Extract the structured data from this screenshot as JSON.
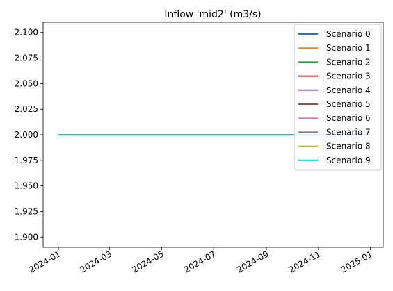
{
  "chart_data": {
    "type": "line",
    "title": "Inflow 'mid2' (m3/s)",
    "xlabel": "",
    "ylabel": "",
    "x_axis": {
      "type": "date",
      "range": [
        "2023-12-14",
        "2025-01-16"
      ],
      "tick_labels": [
        "2024-01",
        "2024-03",
        "2024-05",
        "2024-07",
        "2024-09",
        "2024-11",
        "2025-01"
      ],
      "tick_values": [
        "2024-01-01",
        "2024-03-01",
        "2024-05-01",
        "2024-07-01",
        "2024-09-01",
        "2024-11-01",
        "2025-01-01"
      ]
    },
    "y_axis": {
      "range": [
        1.89,
        2.11
      ],
      "tick_labels": [
        "1.900",
        "1.925",
        "1.950",
        "1.975",
        "2.000",
        "2.025",
        "2.050",
        "2.075",
        "2.100"
      ],
      "tick_values": [
        1.9,
        1.925,
        1.95,
        1.975,
        2.0,
        2.025,
        2.05,
        2.075,
        2.1
      ]
    },
    "grid": false,
    "legend": {
      "placement": "top-right"
    },
    "series": [
      {
        "name": "Scenario 0",
        "color": "#1f77b4",
        "x": [
          "2024-01-01",
          "2024-12-31"
        ],
        "y": [
          2.0,
          2.0
        ]
      },
      {
        "name": "Scenario 1",
        "color": "#ff7f0e",
        "x": [
          "2024-01-01",
          "2024-12-31"
        ],
        "y": [
          2.0,
          2.0
        ]
      },
      {
        "name": "Scenario 2",
        "color": "#2ca02c",
        "x": [
          "2024-01-01",
          "2024-12-31"
        ],
        "y": [
          2.0,
          2.0
        ]
      },
      {
        "name": "Scenario 3",
        "color": "#d62728",
        "x": [
          "2024-01-01",
          "2024-12-31"
        ],
        "y": [
          2.0,
          2.0
        ]
      },
      {
        "name": "Scenario 4",
        "color": "#9467bd",
        "x": [
          "2024-01-01",
          "2024-12-31"
        ],
        "y": [
          2.0,
          2.0
        ]
      },
      {
        "name": "Scenario 5",
        "color": "#8c564b",
        "x": [
          "2024-01-01",
          "2024-12-31"
        ],
        "y": [
          2.0,
          2.0
        ]
      },
      {
        "name": "Scenario 6",
        "color": "#e377c2",
        "x": [
          "2024-01-01",
          "2024-12-31"
        ],
        "y": [
          2.0,
          2.0
        ]
      },
      {
        "name": "Scenario 7",
        "color": "#7f7f7f",
        "x": [
          "2024-01-01",
          "2024-12-31"
        ],
        "y": [
          2.0,
          2.0
        ]
      },
      {
        "name": "Scenario 8",
        "color": "#bcbd22",
        "x": [
          "2024-01-01",
          "2024-12-31"
        ],
        "y": [
          2.0,
          2.0
        ]
      },
      {
        "name": "Scenario 9",
        "color": "#17becf",
        "x": [
          "2024-01-01",
          "2024-12-31"
        ],
        "y": [
          2.0,
          2.0
        ]
      }
    ]
  }
}
